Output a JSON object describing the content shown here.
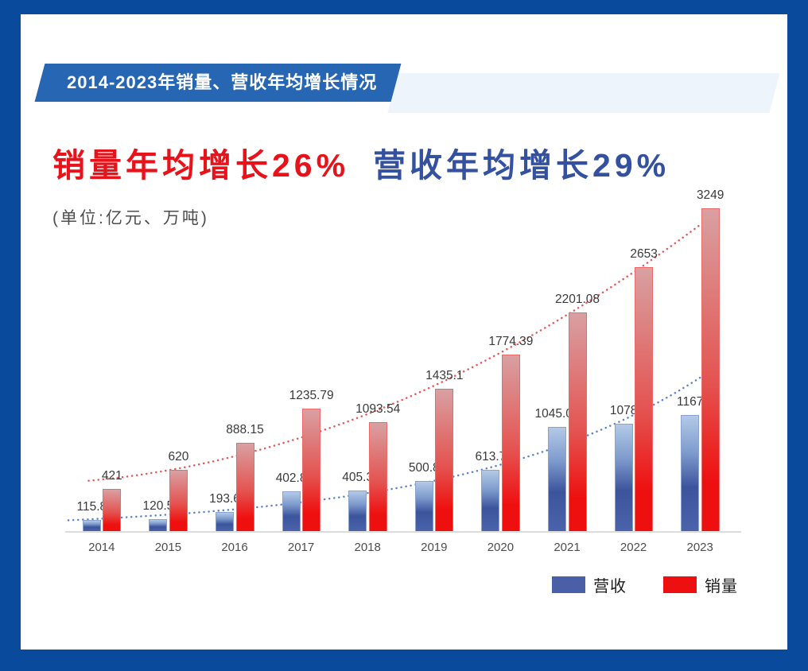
{
  "page": {
    "background_color": "#0a4a9c",
    "card_color": "#ffffff"
  },
  "banner": {
    "label": "2014-2023年销量、营收年均增长情况",
    "bg_color": "#2766b2",
    "echo_color": "#edf4fc",
    "text_color": "#ffffff"
  },
  "headlines": {
    "sales": {
      "text": "销量年均增长26%",
      "color": "#e8131a"
    },
    "revenue": {
      "text": "营收年均增长29%",
      "color": "#33519e"
    }
  },
  "unit_label": "(单位:亿元、万吨)",
  "chart_data": {
    "type": "bar",
    "title": "2014-2023年销量、营收年均增长情况",
    "categories": [
      "2014",
      "2015",
      "2016",
      "2017",
      "2018",
      "2019",
      "2020",
      "2021",
      "2022",
      "2023"
    ],
    "series": [
      {
        "name": "营收",
        "role": "revenue",
        "values": [
          115.8,
          120.5,
          193.6,
          402.8,
          405.3,
          500.8,
          613.7,
          1045.05,
          1078,
          1167
        ],
        "bar_color_top": "#b3c9e6",
        "bar_color_bottom": "#4a63ab",
        "legend_color": "#4a5fa8",
        "trend_color": "#5b82cc",
        "trendline": "exponential"
      },
      {
        "name": "销量",
        "role": "sales",
        "values": [
          421,
          620,
          888.15,
          1235.79,
          1093.54,
          1435.1,
          1774.39,
          2201.08,
          2653,
          3249
        ],
        "bar_color_top": "#d9a0a2",
        "bar_color_bottom": "#ee100f",
        "legend_color": "#ee1011",
        "trend_color": "#e25a5a",
        "trendline": "polynomial2"
      }
    ],
    "ylim": [
      0,
      3400
    ],
    "grid": false,
    "legend_position": "bottom-right",
    "value_label_color": "#3a3a3a",
    "axis_label_color": "#4d4d4d",
    "annotations": {
      "sales_avg_growth": "26%",
      "revenue_avg_growth": "29%"
    }
  }
}
